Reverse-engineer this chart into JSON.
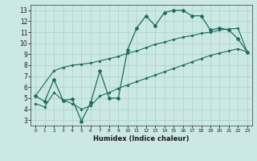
{
  "title": "",
  "xlabel": "Humidex (Indice chaleur)",
  "bg_color": "#cce8e4",
  "line_color": "#1a6b60",
  "grid_color": "#aacfca",
  "xlim": [
    -0.5,
    23.5
  ],
  "ylim": [
    2.5,
    13.5
  ],
  "xticks": [
    0,
    1,
    2,
    3,
    4,
    5,
    6,
    7,
    8,
    9,
    10,
    11,
    12,
    13,
    14,
    15,
    16,
    17,
    18,
    19,
    20,
    21,
    22,
    23
  ],
  "yticks": [
    3,
    4,
    5,
    6,
    7,
    8,
    9,
    10,
    11,
    12,
    13
  ],
  "main_x": [
    0,
    1,
    2,
    3,
    4,
    5,
    6,
    7,
    8,
    9,
    10,
    11,
    12,
    13,
    14,
    15,
    16,
    17,
    18,
    19,
    20,
    21,
    22,
    23
  ],
  "main_y": [
    5.2,
    4.7,
    6.7,
    4.8,
    4.9,
    2.9,
    4.6,
    7.5,
    5.0,
    5.0,
    9.4,
    11.4,
    12.5,
    11.6,
    12.8,
    13.0,
    13.0,
    12.5,
    12.5,
    11.2,
    11.4,
    11.2,
    10.4,
    9.2
  ],
  "upper_x": [
    0,
    2,
    3,
    4,
    5,
    6,
    7,
    8,
    9,
    10,
    11,
    12,
    13,
    14,
    15,
    16,
    17,
    18,
    19,
    20,
    21,
    22,
    23
  ],
  "upper_y": [
    5.2,
    7.5,
    7.8,
    8.0,
    8.1,
    8.2,
    8.4,
    8.6,
    8.8,
    9.1,
    9.3,
    9.6,
    9.9,
    10.1,
    10.35,
    10.55,
    10.7,
    10.9,
    11.0,
    11.2,
    11.3,
    11.35,
    9.2
  ],
  "lower_x": [
    0,
    1,
    2,
    3,
    4,
    5,
    6,
    7,
    8,
    9,
    10,
    11,
    12,
    13,
    14,
    15,
    16,
    17,
    18,
    19,
    20,
    21,
    22,
    23
  ],
  "lower_y": [
    4.5,
    4.2,
    5.5,
    4.8,
    4.5,
    4.0,
    4.3,
    5.2,
    5.5,
    5.9,
    6.2,
    6.5,
    6.8,
    7.1,
    7.4,
    7.7,
    8.0,
    8.3,
    8.6,
    8.9,
    9.1,
    9.3,
    9.5,
    9.2
  ]
}
